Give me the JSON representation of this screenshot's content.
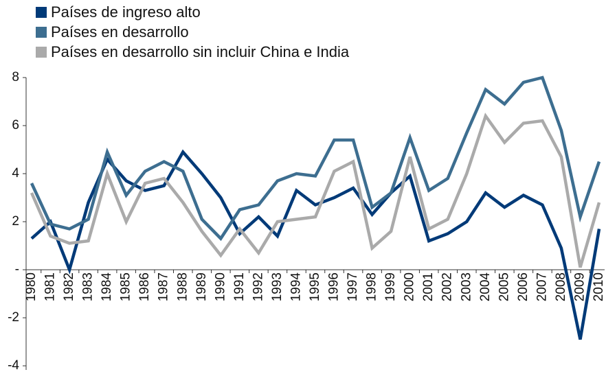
{
  "chart_data": {
    "type": "line",
    "categories": [
      "1980",
      "1981",
      "1982",
      "1983",
      "1984",
      "1985",
      "1986",
      "1987",
      "1988",
      "1989",
      "1990",
      "1991",
      "1992",
      "1993",
      "1994",
      "1995",
      "1996",
      "1997",
      "1998",
      "1999",
      "2000",
      "2001",
      "2002",
      "2003",
      "2004",
      "2005",
      "2006",
      "2007",
      "2008",
      "2009",
      "2010"
    ],
    "series": [
      {
        "name": "Países de ingreso alto",
        "color": "#003a78",
        "values": [
          1.3,
          2.0,
          0.0,
          2.8,
          4.6,
          3.7,
          3.3,
          3.5,
          4.9,
          4.0,
          3.0,
          1.5,
          2.2,
          1.4,
          3.3,
          2.7,
          3.0,
          3.4,
          2.3,
          3.2,
          3.9,
          1.2,
          1.5,
          2.0,
          3.2,
          2.6,
          3.1,
          2.7,
          0.9,
          -2.9,
          1.7
        ]
      },
      {
        "name": "Países en desarrollo",
        "color": "#3d6e90",
        "values": [
          3.6,
          1.9,
          1.7,
          2.1,
          4.9,
          3.1,
          4.1,
          4.5,
          4.1,
          2.1,
          1.3,
          2.5,
          2.7,
          3.7,
          4.0,
          3.9,
          5.4,
          5.4,
          2.6,
          3.2,
          5.5,
          3.3,
          3.8,
          5.7,
          7.5,
          6.9,
          7.8,
          8.0,
          5.8,
          2.2,
          4.5
        ]
      },
      {
        "name": "Países en desarrollo sin incluir China e India",
        "color": "#aaaaaa",
        "values": [
          3.2,
          1.4,
          1.1,
          1.2,
          4.0,
          2.0,
          3.6,
          3.8,
          2.8,
          1.6,
          0.6,
          1.7,
          0.7,
          2.0,
          2.1,
          2.2,
          4.1,
          4.5,
          0.9,
          1.6,
          4.7,
          1.7,
          2.1,
          4.0,
          6.4,
          5.3,
          6.1,
          6.2,
          4.7,
          0.1,
          2.8
        ]
      }
    ],
    "ylim": [
      -4,
      8
    ],
    "yticks": [
      -4,
      -2,
      {
        "value": 0,
        "label": "-"
      },
      2,
      4,
      6,
      8
    ],
    "legend": "top-left"
  }
}
